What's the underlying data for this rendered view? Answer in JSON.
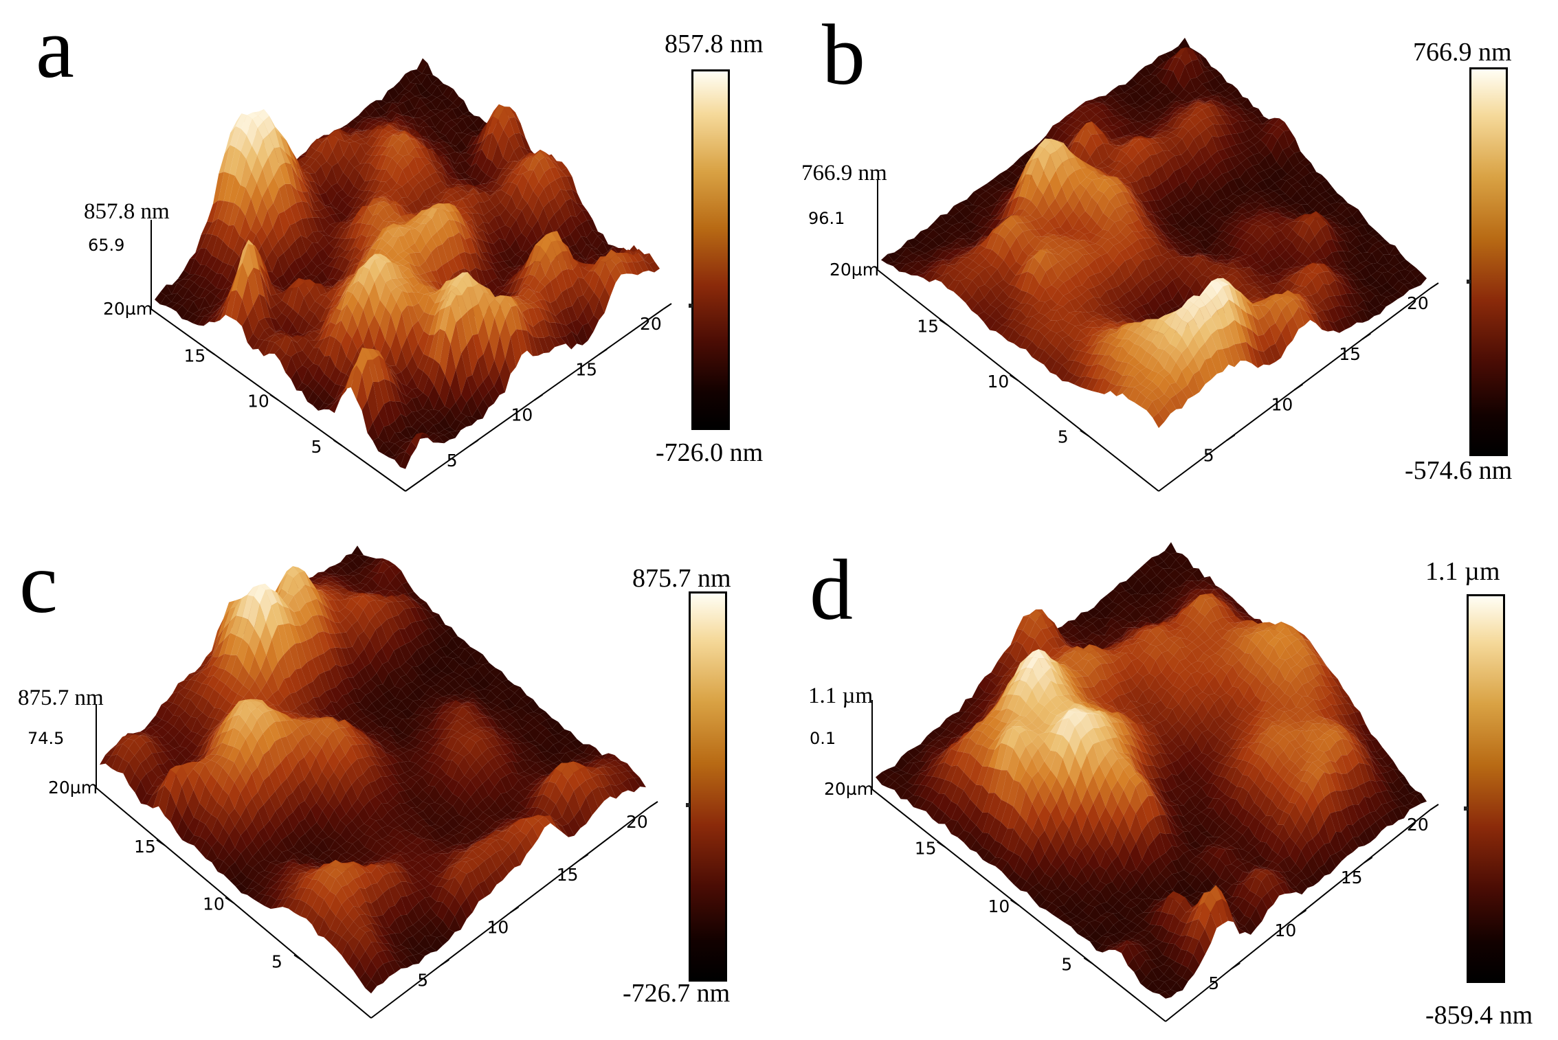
{
  "panels": [
    {
      "id": "a",
      "letter": "a",
      "z_top": "857.8 nm",
      "z_mid": "65.9",
      "axis_unit": "20µm",
      "x_ticks": [
        "5",
        "10",
        "15",
        "20"
      ],
      "y_ticks": [
        "5",
        "10",
        "15"
      ],
      "colorbar": {
        "max": "857.8 nm",
        "min": "-726.0 nm"
      }
    },
    {
      "id": "b",
      "letter": "b",
      "z_top": "766.9 nm",
      "z_mid": "96.1",
      "axis_unit": "20µm",
      "x_ticks": [
        "5",
        "10",
        "15",
        "20"
      ],
      "y_ticks": [
        "5",
        "10",
        "15"
      ],
      "colorbar": {
        "max": "766.9 nm",
        "min": "-574.6 nm"
      }
    },
    {
      "id": "c",
      "letter": "c",
      "z_top": "875.7 nm",
      "z_mid": "74.5",
      "axis_unit": "20µm",
      "x_ticks": [
        "5",
        "10",
        "15",
        "20"
      ],
      "y_ticks": [
        "5",
        "10",
        "15"
      ],
      "colorbar": {
        "max": "875.7 nm",
        "min": "-726.7 nm"
      }
    },
    {
      "id": "d",
      "letter": "d",
      "z_top": "1.1  µm",
      "z_mid": "0.1",
      "axis_unit": "20µm",
      "x_ticks": [
        "5",
        "10",
        "15",
        "20"
      ],
      "y_ticks": [
        "5",
        "10",
        "15"
      ],
      "colorbar": {
        "max": "1.1 µm",
        "min": "-859.4 nm"
      }
    }
  ],
  "colors": {
    "peak": "#fff6dc",
    "high": "#e3a448",
    "mid": "#b5460f",
    "low": "#5a0e05",
    "trough": "#140200"
  }
}
